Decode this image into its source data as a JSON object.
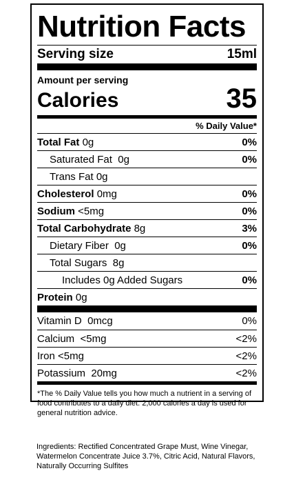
{
  "title": "Nutrition Facts",
  "serving": {
    "label": "Serving size",
    "value": "15ml"
  },
  "amount_per_serving": "Amount per serving",
  "calories": {
    "label": "Calories",
    "value": "35"
  },
  "dv_header": "% Daily Value*",
  "nutrients": [
    {
      "name": "Total Fat",
      "amount": "0g",
      "dv": "0%"
    },
    {
      "name": "Saturated Fat",
      "amount": "0g",
      "dv": "0%"
    },
    {
      "name": "Trans Fat",
      "amount": "0g",
      "dv": ""
    },
    {
      "name": "Cholesterol",
      "amount": "0mg",
      "dv": "0%"
    },
    {
      "name": "Sodium",
      "amount": "<5mg",
      "dv": "0%"
    },
    {
      "name": "Total Carbohydrate",
      "amount": "8g",
      "dv": "3%"
    },
    {
      "name": "Dietary Fiber",
      "amount": "0g",
      "dv": "0%"
    },
    {
      "name": "Total Sugars",
      "amount": "8g",
      "dv": ""
    },
    {
      "name": "Includes 0g Added Sugars",
      "amount": "",
      "dv": "0%"
    },
    {
      "name": "Protein",
      "amount": "0g",
      "dv": ""
    }
  ],
  "vitamins": [
    {
      "name": "Vitamin D",
      "amount": "0mcg",
      "dv": "0%"
    },
    {
      "name": "Calcium",
      "amount": "<5mg",
      "dv": "<2%"
    },
    {
      "name": "Iron",
      "amount": "<5mg",
      "dv": "<2%"
    },
    {
      "name": "Potassium",
      "amount": "20mg",
      "dv": "<2%"
    }
  ],
  "footnote": "*The % Daily Value tells you how much a nutrient in a serving of food contributes to a daily diet. 2,000 calories a day is used for general nutrition advice.",
  "ingredients": "Ingredients: Rectified Concentrated Grape Must, Wine Vinegar, Watermelon Concentrate Juice 3.7%, Citric Acid, Natural Flavors, Naturally Occurring Sulfites"
}
